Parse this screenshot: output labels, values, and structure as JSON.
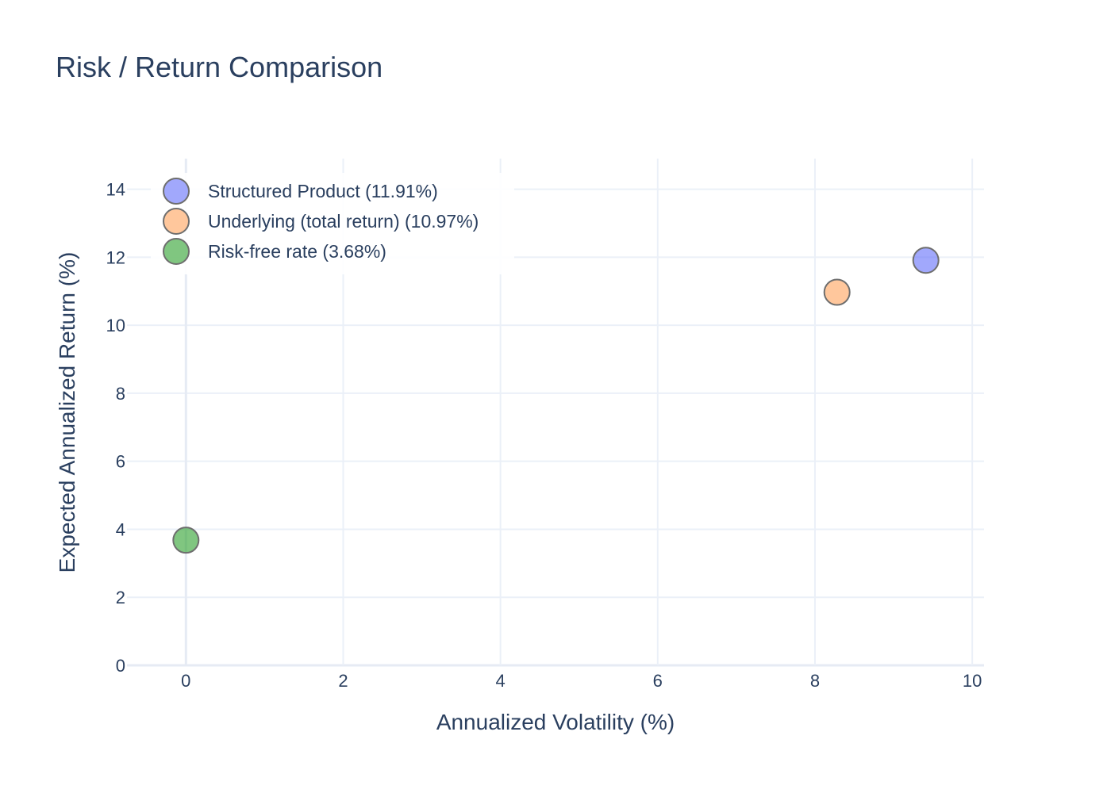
{
  "chart_data": {
    "type": "scatter",
    "title": "Risk / Return Comparison",
    "xlabel": "Annualized Volatility (%)",
    "ylabel": "Expected Annualized Return (%)",
    "xlim": [
      -0.75,
      10.15
    ],
    "ylim": [
      0,
      14.9
    ],
    "xticks": [
      0,
      2,
      4,
      6,
      8,
      10
    ],
    "yticks": [
      0,
      2,
      4,
      6,
      8,
      10,
      12,
      14
    ],
    "grid": true,
    "legend_position": "top-left",
    "series": [
      {
        "name": "Structured Product (11.91%)",
        "color": "#636efa",
        "x": [
          9.41
        ],
        "y": [
          11.91
        ]
      },
      {
        "name": "Underlying (total return) (10.97%)",
        "color": "#ffa15a",
        "x": [
          8.28
        ],
        "y": [
          10.97
        ]
      },
      {
        "name": "Risk-free rate (3.68%)",
        "color": "#2ca02c",
        "x": [
          0
        ],
        "y": [
          3.68
        ]
      }
    ]
  }
}
